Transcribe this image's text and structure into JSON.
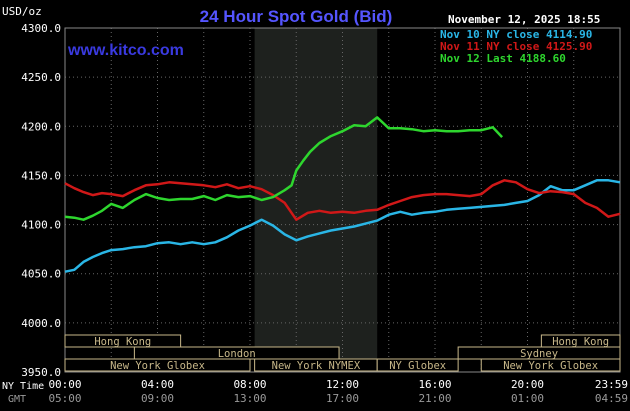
{
  "header": {
    "unit_label": "USD/oz",
    "title": "24 Hour Spot Gold (Bid)",
    "timestamp": "November 12, 2025 18:55",
    "watermark": "www.kitco.com"
  },
  "colors": {
    "background": "#000000",
    "title": "#5555ff",
    "watermark": "#3333dd",
    "grid": "#666666",
    "ny_shade": "#1e211e",
    "nov10": "#2ab6e6",
    "nov11": "#d01818",
    "nov12": "#2ed62e",
    "sessions": "#c8b88a",
    "text": "#ffffff",
    "gmt_text": "#9a9a9a"
  },
  "axis_labels": {
    "ny_time": "NY Time",
    "gmt": "GMT"
  },
  "sessions": [
    {
      "label": "Hong Kong",
      "start": 0.0,
      "end": 5.0,
      "row": 0
    },
    {
      "label": "Hong Kong",
      "start": 20.6,
      "end": 24.0,
      "row": 0
    },
    {
      "label": "London",
      "start": 3.0,
      "end": 11.85,
      "row": 1
    },
    {
      "label": "Sydney",
      "start": 17.0,
      "end": 24.0,
      "row": 1
    },
    {
      "label": "New York Globex",
      "start": 0.0,
      "end": 8.0,
      "row": 2
    },
    {
      "label": "New York NYMEX",
      "start": 8.2,
      "end": 13.5,
      "row": 2
    },
    {
      "label": "NY Globex",
      "start": 13.5,
      "end": 17.0,
      "row": 2
    },
    {
      "label": "New York Globex",
      "start": 18.0,
      "end": 24.0,
      "row": 2
    }
  ],
  "chart_data": {
    "type": "line",
    "title": "24 Hour Spot Gold (Bid)",
    "ylabel": "USD/oz",
    "ylim": [
      3950,
      4300
    ],
    "xlim": [
      0,
      24
    ],
    "yticks": [
      "3950.0",
      "4000.0",
      "4050.0",
      "4100.0",
      "4150.0",
      "4200.0",
      "4250.0",
      "4300.0"
    ],
    "ytick_values": [
      3950,
      4000,
      4050,
      4100,
      4150,
      4200,
      4250,
      4300
    ],
    "xticks_ny": [
      "00:00",
      "04:00",
      "08:00",
      "12:00",
      "16:00",
      "20:00",
      "23:59"
    ],
    "xticks_gmt": [
      "05:00",
      "09:00",
      "13:00",
      "17:00",
      "21:00",
      "01:00",
      "04:59"
    ],
    "xtick_hours": [
      0,
      4,
      8,
      12,
      16,
      20,
      24
    ],
    "ny_session_shade": [
      8.2,
      13.5
    ],
    "grid": true,
    "legend_position": "top-right",
    "series": [
      {
        "name": "Nov 10 NY close 4114.90",
        "color_key": "nov10",
        "x": [
          0,
          0.4,
          0.8,
          1.2,
          1.6,
          2,
          2.5,
          3,
          3.5,
          4,
          4.5,
          5,
          5.5,
          6,
          6.5,
          7,
          7.5,
          8,
          8.5,
          9,
          9.5,
          10,
          10.5,
          11,
          11.5,
          12,
          12.5,
          13,
          13.5,
          14,
          14.5,
          15,
          15.5,
          16,
          16.5,
          17,
          17.5,
          18,
          18.5,
          19,
          19.5,
          20,
          20.5,
          21,
          21.5,
          22,
          22.5,
          23,
          23.5,
          24
        ],
        "y": [
          4052,
          4054,
          4062,
          4067,
          4071,
          4074,
          4075,
          4077,
          4078,
          4081,
          4082,
          4080,
          4082,
          4080,
          4082,
          4087,
          4094,
          4099,
          4105,
          4099,
          4090,
          4084,
          4088,
          4091,
          4094,
          4096,
          4098,
          4101,
          4104,
          4110,
          4113,
          4110,
          4112,
          4113,
          4115,
          4116,
          4117,
          4118,
          4119,
          4120,
          4122,
          4124,
          4130,
          4139,
          4135,
          4135,
          4140,
          4145,
          4145,
          4143
        ]
      },
      {
        "name": "Nov 11 NY close 4125.90",
        "color_key": "nov11",
        "x": [
          0,
          0.4,
          0.8,
          1.2,
          1.6,
          2,
          2.5,
          3,
          3.5,
          4,
          4.5,
          5,
          5.5,
          6,
          6.5,
          7,
          7.5,
          8,
          8.5,
          9,
          9.5,
          10,
          10.5,
          11,
          11.5,
          12,
          12.5,
          13,
          13.5,
          14,
          14.5,
          15,
          15.5,
          16,
          16.5,
          17,
          17.5,
          18,
          18.5,
          19,
          19.5,
          20,
          20.5,
          21,
          21.5,
          22,
          22.5,
          23,
          23.5,
          24
        ],
        "y": [
          4142,
          4137,
          4133,
          4130,
          4132,
          4131,
          4129,
          4135,
          4140,
          4141,
          4143,
          4142,
          4141,
          4140,
          4138,
          4141,
          4137,
          4139,
          4136,
          4130,
          4122,
          4105,
          4112,
          4114,
          4112,
          4113,
          4112,
          4114,
          4115,
          4120,
          4124,
          4128,
          4130,
          4131,
          4131,
          4130,
          4129,
          4131,
          4140,
          4145,
          4143,
          4136,
          4132,
          4134,
          4133,
          4131,
          4122,
          4117,
          4108,
          4111
        ]
      },
      {
        "name": "Nov 12 Last 4188.60",
        "color_key": "nov12",
        "x": [
          0,
          0.4,
          0.8,
          1.2,
          1.6,
          2,
          2.5,
          3,
          3.5,
          4,
          4.5,
          5,
          5.5,
          6,
          6.5,
          7,
          7.5,
          8,
          8.5,
          9,
          9.5,
          9.8,
          10,
          10.3,
          10.6,
          11,
          11.5,
          12,
          12.5,
          13,
          13.5,
          14,
          14.5,
          15,
          15.5,
          16,
          16.5,
          17,
          17.5,
          18,
          18.5,
          18.9
        ],
        "y": [
          4108,
          4107,
          4105,
          4109,
          4114,
          4121,
          4117,
          4125,
          4131,
          4127,
          4125,
          4126,
          4126,
          4129,
          4125,
          4130,
          4128,
          4129,
          4125,
          4128,
          4135,
          4140,
          4155,
          4165,
          4174,
          4183,
          4190,
          4195,
          4201,
          4200,
          4209,
          4198,
          4198,
          4197,
          4195,
          4196,
          4195,
          4195,
          4196,
          4196,
          4199,
          4189
        ]
      }
    ]
  }
}
